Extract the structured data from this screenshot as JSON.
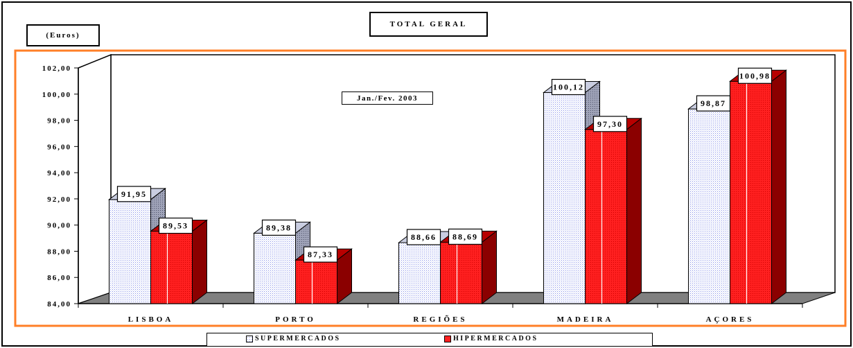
{
  "chart_data": {
    "type": "bar",
    "title": "TOTAL GERAL",
    "unit_label": "(Euros)",
    "annotation": "Jan./Fev. 2003",
    "categories": [
      "LISBOA",
      "PORTO",
      "REGIÕES",
      "MADEIRA",
      "AÇORES"
    ],
    "series": [
      {
        "name": "SUPERMERCADOS",
        "values": [
          91.95,
          89.38,
          88.66,
          100.12,
          98.87
        ],
        "labels": [
          "91,95",
          "89,38",
          "88,66",
          "100,12",
          "98,87"
        ],
        "color": "#dde2ff"
      },
      {
        "name": "HIPERMERCADOS",
        "values": [
          89.53,
          87.33,
          88.69,
          97.3,
          100.98
        ],
        "labels": [
          "89,53",
          "87,33",
          "88,69",
          "97,30",
          "100,98"
        ],
        "color": "#ff2020"
      }
    ],
    "ylim": [
      84,
      102
    ],
    "y_ticks": [
      "84,00",
      "86,00",
      "88,00",
      "90,00",
      "92,00",
      "94,00",
      "96,00",
      "98,00",
      "100,00",
      "102,00"
    ],
    "grid": false,
    "legend_position": "bottom",
    "style": "3d-bar",
    "colors": {
      "accent_border": "#ff7f27",
      "floor": "#808080"
    }
  }
}
